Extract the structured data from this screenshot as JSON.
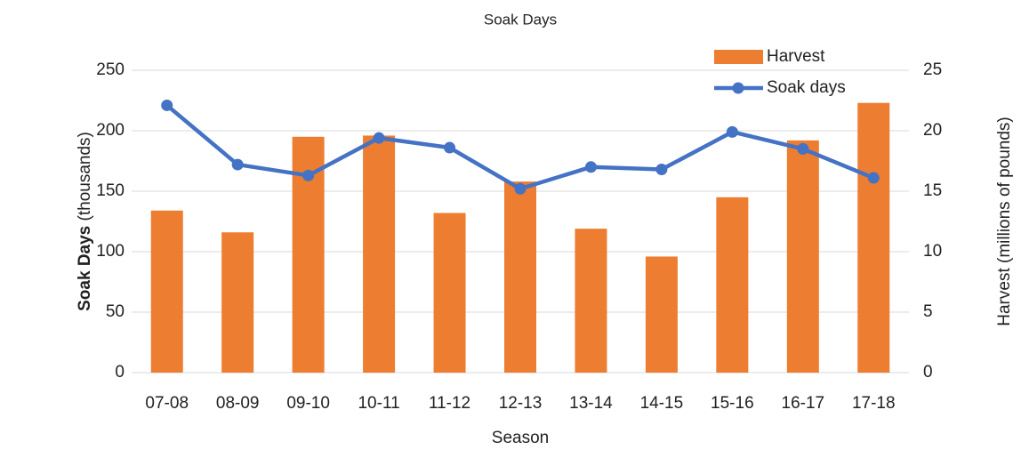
{
  "chart_data": {
    "type": "bar_line",
    "title": "Soak Days",
    "xlabel": "Season",
    "ylabel": [
      "Soak Days",
      "(thousands)"
    ],
    "y2label": "Harvest (millions of pounds)",
    "categories": [
      "07-08",
      "08-09",
      "09-10",
      "10-11",
      "11-12",
      "12-13",
      "13-14",
      "14-15",
      "15-16",
      "16-17",
      "17-18"
    ],
    "series": [
      {
        "name": "Harvest",
        "type": "bar",
        "axis": "y2",
        "color": "#ed7d31",
        "values": [
          13.4,
          11.6,
          19.5,
          19.6,
          13.2,
          15.8,
          11.9,
          9.6,
          14.5,
          19.2,
          22.3
        ]
      },
      {
        "name": "Soak days",
        "type": "line",
        "axis": "y",
        "color": "#4472c4",
        "values": [
          221,
          172,
          163,
          194,
          186,
          152,
          170,
          168,
          199,
          185,
          161
        ]
      }
    ],
    "ylim": [
      0,
      250
    ],
    "yticks": [
      0,
      50,
      100,
      150,
      200,
      250
    ],
    "y2lim": [
      0,
      25
    ],
    "y2ticks": [
      0,
      5,
      10,
      15,
      20,
      25
    ],
    "grid": true,
    "legend": "top-right"
  }
}
